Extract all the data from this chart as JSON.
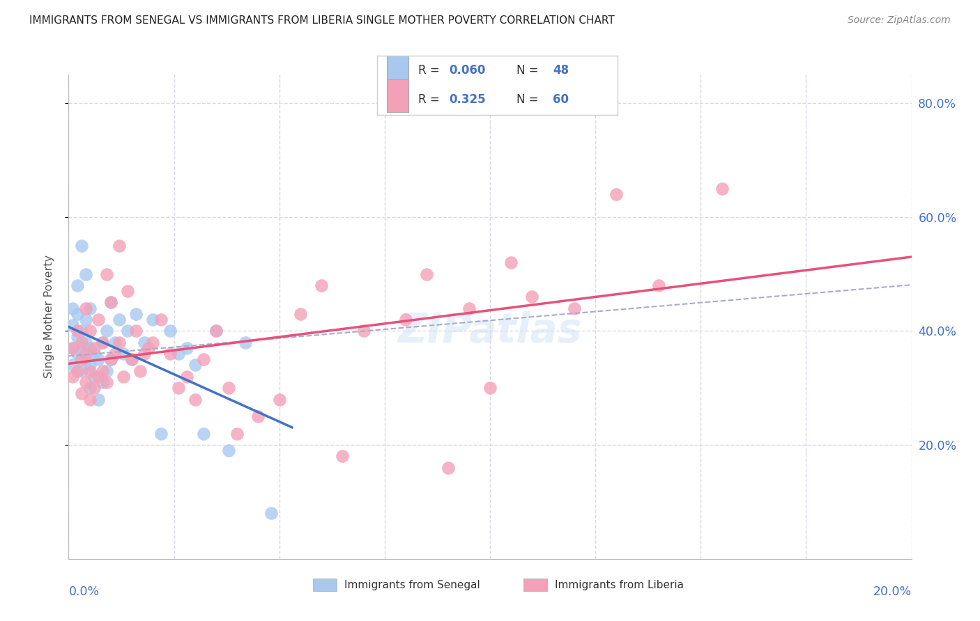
{
  "title": "IMMIGRANTS FROM SENEGAL VS IMMIGRANTS FROM LIBERIA SINGLE MOTHER POVERTY CORRELATION CHART",
  "source": "Source: ZipAtlas.com",
  "ylabel": "Single Mother Poverty",
  "R1": "0.060",
  "N1": "48",
  "R2": "0.325",
  "N2": "60",
  "color_senegal": "#a8c8f0",
  "color_liberia": "#f4a0b8",
  "color_senegal_line": "#4472c4",
  "color_liberia_line": "#e8507a",
  "color_trendline_dashed": "#aaaacc",
  "color_blue_text": "#4472c4",
  "background_color": "#ffffff",
  "grid_color": "#d8d8e8",
  "legend_label1": "Immigrants from Senegal",
  "legend_label2": "Immigrants from Liberia",
  "senegal_x": [
    0.001,
    0.001,
    0.001,
    0.001,
    0.002,
    0.002,
    0.002,
    0.002,
    0.003,
    0.003,
    0.003,
    0.003,
    0.004,
    0.004,
    0.004,
    0.004,
    0.005,
    0.005,
    0.005,
    0.005,
    0.006,
    0.006,
    0.007,
    0.007,
    0.008,
    0.008,
    0.009,
    0.009,
    0.01,
    0.01,
    0.011,
    0.012,
    0.013,
    0.014,
    0.015,
    0.016,
    0.018,
    0.02,
    0.022,
    0.024,
    0.026,
    0.028,
    0.03,
    0.032,
    0.035,
    0.038,
    0.042,
    0.048
  ],
  "senegal_y": [
    0.34,
    0.37,
    0.41,
    0.44,
    0.36,
    0.39,
    0.43,
    0.48,
    0.33,
    0.37,
    0.4,
    0.55,
    0.35,
    0.38,
    0.42,
    0.5,
    0.3,
    0.34,
    0.37,
    0.44,
    0.32,
    0.36,
    0.28,
    0.35,
    0.31,
    0.38,
    0.33,
    0.4,
    0.35,
    0.45,
    0.38,
    0.42,
    0.36,
    0.4,
    0.35,
    0.43,
    0.38,
    0.42,
    0.22,
    0.4,
    0.36,
    0.37,
    0.34,
    0.22,
    0.4,
    0.19,
    0.38,
    0.08
  ],
  "liberia_x": [
    0.001,
    0.001,
    0.002,
    0.002,
    0.003,
    0.003,
    0.003,
    0.004,
    0.004,
    0.004,
    0.005,
    0.005,
    0.005,
    0.006,
    0.006,
    0.007,
    0.007,
    0.008,
    0.008,
    0.009,
    0.009,
    0.01,
    0.01,
    0.011,
    0.012,
    0.012,
    0.013,
    0.014,
    0.015,
    0.016,
    0.017,
    0.018,
    0.019,
    0.02,
    0.022,
    0.024,
    0.026,
    0.028,
    0.03,
    0.032,
    0.035,
    0.038,
    0.04,
    0.045,
    0.05,
    0.055,
    0.06,
    0.065,
    0.07,
    0.08,
    0.085,
    0.09,
    0.095,
    0.1,
    0.105,
    0.11,
    0.12,
    0.13,
    0.14,
    0.155
  ],
  "liberia_y": [
    0.32,
    0.37,
    0.33,
    0.4,
    0.29,
    0.35,
    0.38,
    0.31,
    0.36,
    0.44,
    0.28,
    0.33,
    0.4,
    0.3,
    0.37,
    0.32,
    0.42,
    0.33,
    0.38,
    0.31,
    0.5,
    0.35,
    0.45,
    0.36,
    0.38,
    0.55,
    0.32,
    0.47,
    0.35,
    0.4,
    0.33,
    0.36,
    0.37,
    0.38,
    0.42,
    0.36,
    0.3,
    0.32,
    0.28,
    0.35,
    0.4,
    0.3,
    0.22,
    0.25,
    0.28,
    0.43,
    0.48,
    0.18,
    0.4,
    0.42,
    0.5,
    0.16,
    0.44,
    0.3,
    0.52,
    0.46,
    0.44,
    0.64,
    0.48,
    0.65
  ],
  "xlim": [
    0.0,
    0.2
  ],
  "ylim": [
    0.0,
    0.85
  ],
  "y_ticks": [
    0.2,
    0.4,
    0.6,
    0.8
  ]
}
